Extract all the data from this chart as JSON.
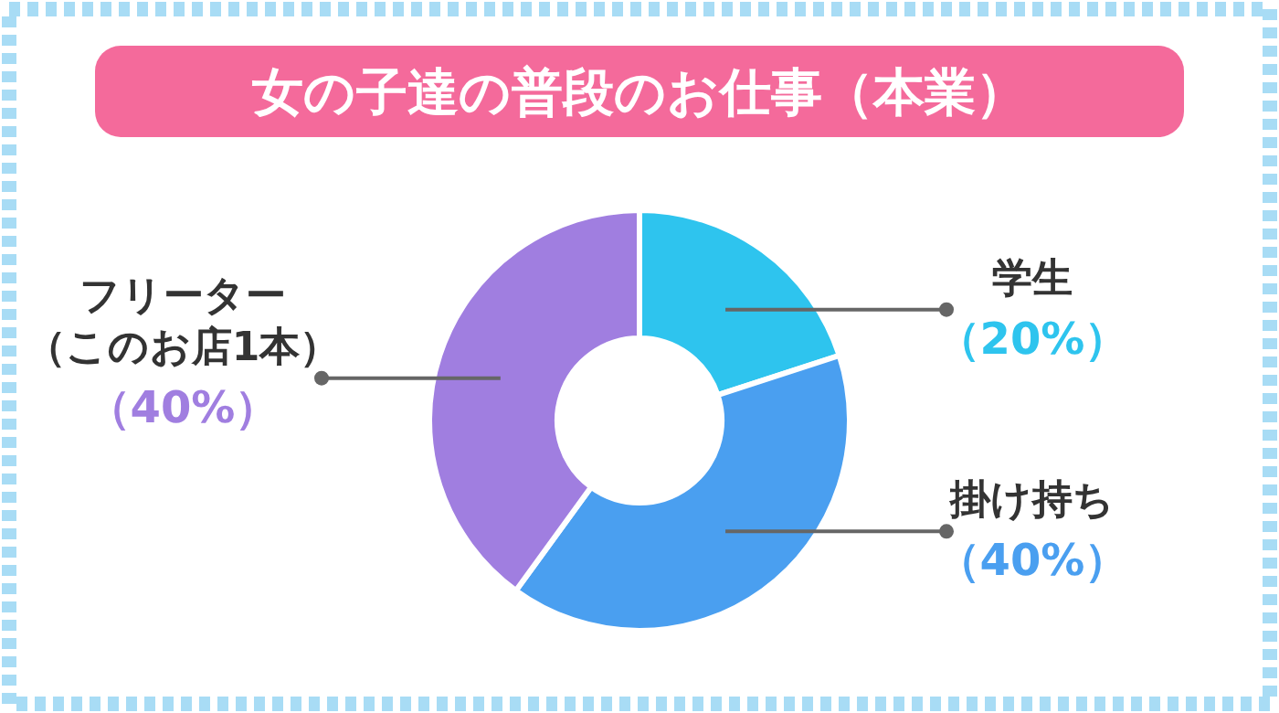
{
  "chart_data": {
    "type": "donut",
    "title": "女の子達の普段のお仕事（本業）",
    "categories": [
      "学生",
      "掛け持ち",
      "フリーター（このお店1本）"
    ],
    "values": [
      20,
      40,
      40
    ],
    "value_labels": [
      "（20%）",
      "（40%）",
      "（40%）"
    ],
    "colors": [
      "#2ec4ee",
      "#4a9ff0",
      "#a07ee0"
    ]
  }
}
